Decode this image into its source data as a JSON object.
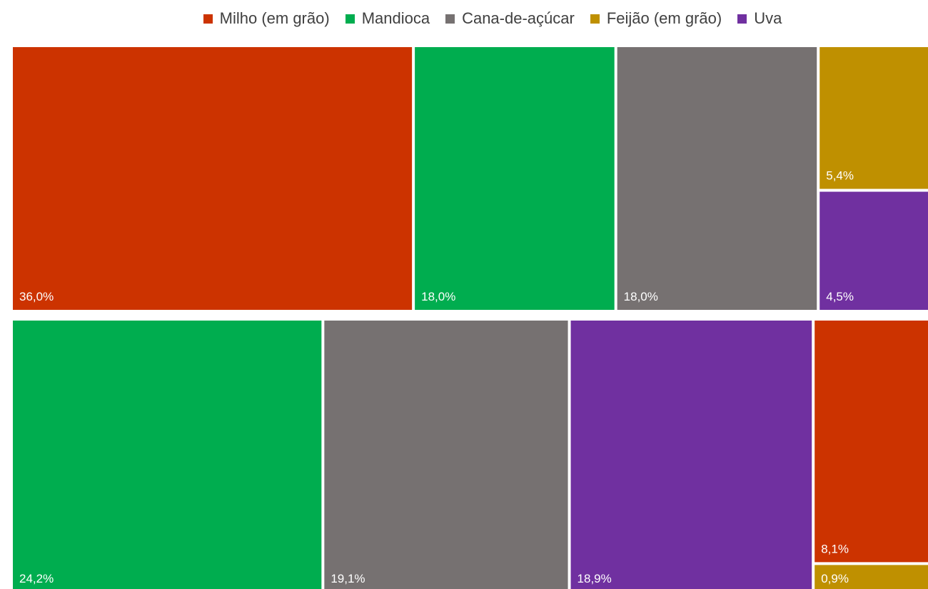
{
  "chart_data": {
    "type": "treemap",
    "legend_position": "top",
    "legend": [
      {
        "name": "Milho (em grão)",
        "color": "#CC3300"
      },
      {
        "name": "Mandioca",
        "color": "#00AD4F"
      },
      {
        "name": "Cana-de-açúcar",
        "color": "#767171"
      },
      {
        "name": "Feijão (em grão)",
        "color": "#BF9000"
      },
      {
        "name": "Uva",
        "color": "#7030A0"
      }
    ],
    "groups": [
      {
        "items": [
          {
            "category": "Milho (em grão)",
            "value": 36.0,
            "label": "36,0%"
          },
          {
            "category": "Mandioca",
            "value": 18.0,
            "label": "18,0%"
          },
          {
            "category": "Cana-de-açúcar",
            "value": 18.0,
            "label": "18,0%"
          },
          {
            "category": "Feijão (em grão)",
            "value": 5.4,
            "label": "5,4%"
          },
          {
            "category": "Uva",
            "value": 4.5,
            "label": "4,5%"
          }
        ]
      },
      {
        "items": [
          {
            "category": "Mandioca",
            "value": 24.2,
            "label": "24,2%"
          },
          {
            "category": "Cana-de-açúcar",
            "value": 19.1,
            "label": "19,1%"
          },
          {
            "category": "Uva",
            "value": 18.9,
            "label": "18,9%"
          },
          {
            "category": "Milho (em grão)",
            "value": 8.1,
            "label": "8,1%"
          },
          {
            "category": "Feijão (em grão)",
            "value": 0.9,
            "label": "0,9%"
          }
        ]
      }
    ]
  }
}
